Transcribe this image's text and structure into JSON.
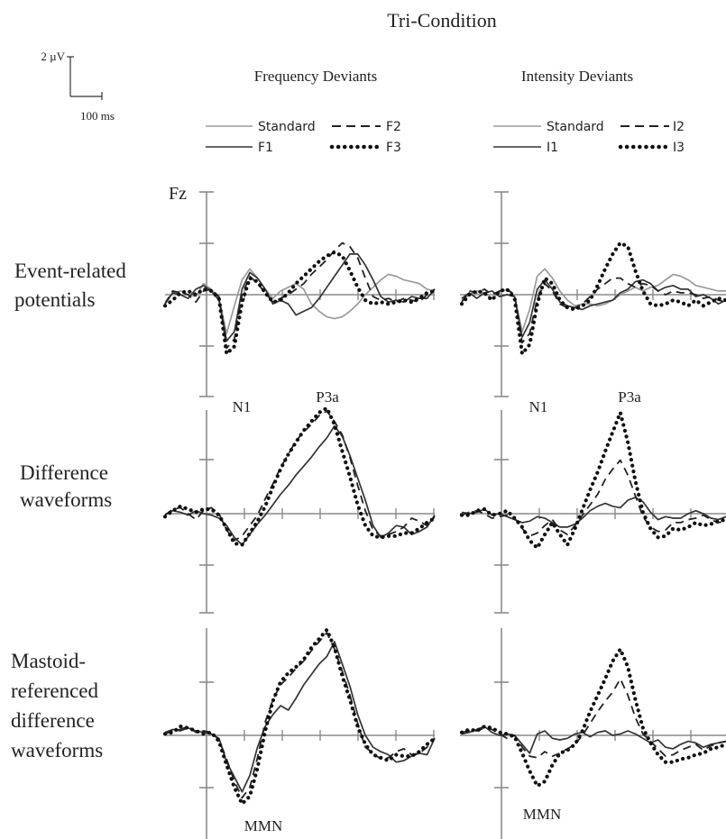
{
  "title": "Tri-Condition",
  "scale_bar": {
    "amplitude_label": "2 µV",
    "time_label": "100 ms"
  },
  "channel_label": "Fz",
  "row_labels": [
    [
      "Event-related",
      "potentials"
    ],
    [
      "Difference",
      "waveforms"
    ],
    [
      "Mastoid-",
      "referenced",
      "difference",
      "waveforms"
    ]
  ],
  "colors": {
    "standard": "#9a9a9a",
    "level1": "#333333",
    "level2": "#222222",
    "level3": "#111111",
    "axis": "#8a8a8a"
  },
  "chart_data": [
    {
      "type": "line",
      "title": "Frequency Deviants",
      "legend": [
        "Standard",
        "F1",
        "F2",
        "F3"
      ],
      "panels": [
        {
          "row": "Event-related potentials",
          "annotations": [
            "N1",
            "P3a"
          ],
          "series": [
            {
              "name": "Standard",
              "values": [
                -0.4,
                0.1,
                0.2,
                0,
                -0.1,
                0.6,
                0.3,
                -0.2,
                -2.1,
                -0.6,
                0.8,
                1.4,
                0.9,
                0.3,
                -0.2,
                0.2,
                0.4,
                0.6,
                0.3,
                -0.5,
                -0.9,
                -1.2,
                -1.3,
                -1.2,
                -0.9,
                -0.5,
                0,
                0.4,
                0.8,
                1.1,
                1,
                0.8,
                0.7,
                0.6,
                0.3,
                0.2
              ]
            },
            {
              "name": "F1",
              "values": [
                -0.5,
                0.1,
                0,
                -0.2,
                0.3,
                0.5,
                0.2,
                -0.3,
                -2.5,
                -2,
                0.3,
                1.2,
                0.9,
                0.3,
                -0.5,
                -0.3,
                -0.5,
                -1.1,
                -0.9,
                -0.7,
                -0.2,
                0.4,
                1,
                1.6,
                2.2,
                2.2,
                1.6,
                0.8,
                -0.1,
                -0.4,
                -0.3,
                -0.4,
                -0.1,
                -0.2,
                -0.2,
                0.3
              ]
            },
            {
              "name": "F2",
              "values": [
                -0.5,
                0.2,
                0.1,
                0,
                -0.4,
                0.2,
                0.3,
                -0.1,
                -2.9,
                -2.4,
                0,
                1,
                0.6,
                0.1,
                -0.4,
                -0.2,
                0,
                0.3,
                0.6,
                1.1,
                1.5,
                1.9,
                2.4,
                2.8,
                2.6,
                2,
                0.9,
                -0.1,
                -0.3,
                -0.2,
                -0.4,
                -0.2,
                -0.3,
                -0.4,
                0,
                0.3
              ]
            },
            {
              "name": "F3",
              "values": [
                -0.6,
                -0.3,
                0.1,
                0.2,
                0,
                0.3,
                0.2,
                -0.2,
                -3.2,
                -2.8,
                -0.4,
                0.9,
                0.7,
                0.1,
                -0.4,
                -0.3,
                0.1,
                0.6,
                1,
                1.4,
                1.8,
                2.1,
                2.3,
                2.1,
                1.3,
                0.4,
                -0.3,
                -0.5,
                -0.4,
                -0.5,
                -0.4,
                -0.3,
                -0.4,
                -0.2,
                0.1,
                0.2
              ]
            }
          ]
        },
        {
          "row": "Difference waveforms",
          "annotations": [],
          "series": [
            {
              "name": "F1",
              "values": [
                -0.1,
                0.2,
                0.1,
                -0.1,
                0.2,
                0,
                -0.1,
                -0.3,
                -0.8,
                -1.6,
                -2.1,
                -1.4,
                -0.7,
                -0.1,
                0.6,
                1.3,
                1.9,
                2.6,
                3.2,
                3.8,
                4.5,
                5.1,
                5.9,
                5.2,
                3.9,
                2.4,
                0.9,
                -0.8,
                -1.6,
                -1.3,
                -0.8,
                -0.9,
                -1.4,
                -1.2,
                -0.9,
                -0.1
              ]
            },
            {
              "name": "F2",
              "values": [
                -0.1,
                0.3,
                0.4,
                0,
                -0.4,
                0.2,
                0.4,
                0,
                -1.1,
                -1.8,
                -1.5,
                -0.8,
                -0.1,
                1,
                2,
                3.1,
                4,
                4.9,
                5.5,
                6,
                6.6,
                6.9,
                6.2,
                5.3,
                3.8,
                1.9,
                0.2,
                -1.1,
                -1.5,
                -1.4,
                -1.2,
                -0.9,
                -0.3,
                -0.5,
                -0.8,
                -0.2
              ]
            },
            {
              "name": "F3",
              "values": [
                -0.2,
                0.2,
                0.5,
                0.3,
                0.1,
                0.3,
                0.3,
                -0.1,
                -1,
                -2,
                -2.1,
                -1.3,
                -0.5,
                0.5,
                1.8,
                3,
                4,
                4.8,
                5.6,
                6.2,
                6.8,
                7.1,
                6,
                4.2,
                2.5,
                0.6,
                -0.8,
                -1.5,
                -1.6,
                -1.5,
                -1.5,
                -1.3,
                -1.3,
                -1,
                -0.6,
                -0.3
              ]
            }
          ]
        },
        {
          "row": "Mastoid-referenced difference waveforms",
          "annotations": [
            "MMN"
          ],
          "series": [
            {
              "name": "F1",
              "values": [
                0.2,
                0.4,
                0.3,
                0.5,
                0.3,
                0.2,
                0.1,
                -0.2,
                -1.8,
                -2.8,
                -3.8,
                -2.7,
                -0.8,
                0.6,
                1.4,
                2,
                1.7,
                2.5,
                3.4,
                4.1,
                4.8,
                5.3,
                6.3,
                4.8,
                3.3,
                1.4,
                0,
                -0.8,
                -1.1,
                -1.3,
                -1.8,
                -1.7,
                -1.4,
                -1.2,
                -1.3,
                -0.2
              ]
            },
            {
              "name": "F2",
              "values": [
                0.1,
                0.3,
                0.4,
                0.6,
                0.2,
                0.3,
                0.2,
                -0.3,
                -1.6,
                -3.1,
                -4.2,
                -3.5,
                -1.5,
                0.9,
                2.4,
                3.4,
                3.9,
                4.5,
                5,
                5.7,
                6.3,
                6.9,
                5.8,
                4.3,
                2.7,
                0.8,
                -0.8,
                -1.2,
                -1.6,
                -1.5,
                -1.1,
                -0.9,
                -1.3,
                -1.2,
                -0.8,
                -0.2
              ]
            },
            {
              "name": "F3",
              "values": [
                0.1,
                0.2,
                0.6,
                0.5,
                0.3,
                0.1,
                0.2,
                -0.4,
                -2,
                -3.5,
                -4.6,
                -4.1,
                -2.2,
                0.3,
                2.3,
                3.6,
                4.2,
                4.6,
                5.1,
                5.9,
                6.5,
                7.1,
                5.9,
                4,
                2.4,
                0.6,
                -0.6,
                -1.3,
                -1.5,
                -1.7,
                -1.3,
                -1.4,
                -1.4,
                -1.1,
                -0.6,
                -0.2
              ]
            }
          ]
        }
      ]
    },
    {
      "type": "line",
      "title": "Intensity Deviants",
      "legend": [
        "Standard",
        "I1",
        "I2",
        "I3"
      ],
      "panels": [
        {
          "row": "Event-related potentials",
          "annotations": [
            "N1",
            "P3a"
          ],
          "series": [
            {
              "name": "Standard",
              "values": [
                -0.3,
                0,
                0.2,
                0.1,
                -0.2,
                0.1,
                0.3,
                -0.1,
                -2,
                -0.8,
                1,
                1.4,
                0.9,
                0.2,
                -0.3,
                -0.6,
                -0.5,
                -0.5,
                -0.6,
                -0.5,
                -0.3,
                0,
                0.2,
                0.4,
                0.2,
                0.4,
                0.5,
                0.8,
                1.1,
                1,
                0.8,
                0.5,
                0.4,
                0.3,
                0.2,
                0.2
              ]
            },
            {
              "name": "I1",
              "values": [
                -0.2,
                0.1,
                -0.2,
                0.1,
                0.2,
                -0.1,
                0,
                -0.1,
                -2.3,
                -1.5,
                0.3,
                0.8,
                0.3,
                -0.4,
                -0.6,
                -0.7,
                -0.8,
                -0.6,
                -0.5,
                -0.4,
                -0.3,
                0.1,
                0.3,
                0.7,
                0.8,
                0.6,
                0.2,
                0.4,
                0.5,
                0.3,
                0.3,
                -0.1,
                0,
                -0.2,
                -0.5,
                -0.3
              ]
            },
            {
              "name": "I2",
              "values": [
                -0.4,
                0.2,
                0.1,
                0.3,
                0,
                0.2,
                0.3,
                0,
                -2.6,
                -2.1,
                -0.2,
                0.6,
                0.2,
                -0.5,
                -0.7,
                -0.7,
                -0.5,
                -0.1,
                0.3,
                0.6,
                0.9,
                0.9,
                0.6,
                0.4,
                0.6,
                0.5,
                0.2,
                0,
                0.2,
                0.1,
                0.1,
                0,
                -0.2,
                -0.1,
                -0.3,
                -0.4
              ]
            },
            {
              "name": "I3",
              "values": [
                -0.5,
                0,
                0.2,
                0.1,
                -0.3,
                0.2,
                0.3,
                -0.2,
                -3.2,
                -2.7,
                -0.5,
                0.9,
                0.6,
                -0.3,
                -0.7,
                -0.8,
                -0.6,
                -0.3,
                0.5,
                1.4,
                2.2,
                2.8,
                2.6,
                1.3,
                0.2,
                -0.5,
                -0.6,
                -0.5,
                -0.3,
                -0.4,
                -0.6,
                -0.3,
                -0.6,
                -0.4,
                -0.2,
                -0.3
              ]
            }
          ]
        },
        {
          "row": "Difference waveforms",
          "annotations": [
            "P3a"
          ],
          "series": [
            {
              "name": "I1",
              "values": [
                0.1,
                0,
                0.1,
                0.3,
                -0.1,
                0,
                -0.2,
                -0.4,
                -0.6,
                -0.5,
                -0.2,
                -0.3,
                -0.6,
                -0.9,
                -0.9,
                -0.7,
                -0.3,
                0.2,
                0.5,
                0.7,
                0.5,
                0.4,
                0.9,
                1.1,
                0.8,
                0.1,
                -0.4,
                -0.2,
                -0.3,
                -0.3,
                0,
                0.2,
                0,
                -0.3,
                -0.4,
                -0.2
              ]
            },
            {
              "name": "I2",
              "values": [
                -0.1,
                0.1,
                0.2,
                0,
                -0.3,
                -0.2,
                -0.1,
                -0.3,
                -1,
                -1.5,
                -1.3,
                -0.8,
                -0.4,
                -1.1,
                -1.4,
                -0.8,
                -0.1,
                0.6,
                1.3,
                2.3,
                3,
                3.6,
                2.6,
                1.2,
                -0.2,
                -0.9,
                -1.2,
                -1.1,
                -0.6,
                -0.6,
                -0.4,
                -0.3,
                -0.1,
                -0.4,
                -0.6,
                -0.5
              ]
            },
            {
              "name": "I3",
              "values": [
                -0.1,
                -0.1,
                0.2,
                0.3,
                -0.1,
                0,
                0.2,
                -0.3,
                -0.9,
                -1.8,
                -2.3,
                -1.4,
                -0.6,
                -1.4,
                -2.1,
                -1,
                0.3,
                1.6,
                2.8,
                4.2,
                5.5,
                6.8,
                4.8,
                2.2,
                0.1,
                -1,
                -1.6,
                -1.5,
                -1,
                -1.1,
                -0.9,
                -0.6,
                -0.8,
                -0.7,
                -0.5,
                -0.4
              ]
            }
          ]
        },
        {
          "row": "Mastoid-referenced difference waveforms",
          "annotations": [
            "MMN"
          ],
          "series": [
            {
              "name": "I1",
              "values": [
                0.1,
                0.2,
                0.4,
                0.6,
                0.2,
                0,
                0.1,
                0,
                -0.6,
                -1.2,
                0.1,
                0.3,
                -0.2,
                -0.3,
                -0.2,
                0.1,
                0.2,
                -0.1,
                0.2,
                0.3,
                0,
                0.1,
                0.3,
                0.1,
                -0.2,
                -0.5,
                -0.3,
                -0.8,
                -0.9,
                -0.6,
                -0.4,
                -0.5,
                -0.8,
                -0.6,
                -0.5,
                -0.4
              ]
            },
            {
              "name": "I2",
              "values": [
                0.2,
                0.3,
                0.3,
                0.5,
                0.4,
                0.1,
                -0.2,
                0,
                -0.8,
                -1.4,
                -1.5,
                -1.1,
                -1.4,
                -1.2,
                -0.9,
                -0.6,
                0,
                0.8,
                1.6,
                2.3,
                2.9,
                3.8,
                2.7,
                1.2,
                0.1,
                -0.4,
                -0.9,
                -1.4,
                -1.3,
                -1,
                -0.8,
                -0.6,
                -1,
                -0.7,
                -0.5,
                -0.4
              ]
            },
            {
              "name": "I3",
              "values": [
                0.2,
                0.4,
                0.3,
                0.6,
                0.5,
                0.2,
                0.1,
                -0.1,
                -1.2,
                -2.4,
                -3.4,
                -3.1,
                -2,
                -1.2,
                -1,
                -0.6,
                0.3,
                1.6,
                2.7,
                3.8,
                5,
                5.8,
                4.6,
                2.4,
                0.5,
                -0.5,
                -1.3,
                -1.8,
                -1.8,
                -1.6,
                -1.5,
                -1.3,
                -1.2,
                -0.9,
                -0.8,
                -0.6
              ]
            }
          ]
        }
      ]
    }
  ]
}
